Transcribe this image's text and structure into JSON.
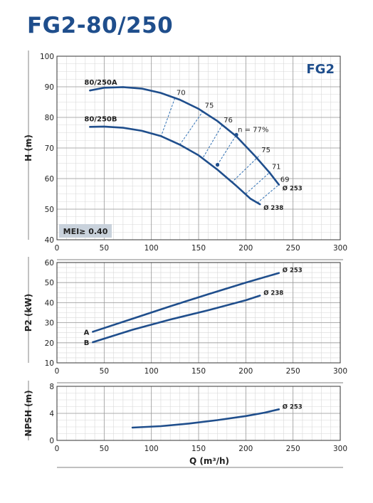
{
  "title": "FG2-80/250",
  "colors": {
    "title": "#1f4e8c",
    "curve": "#1f4e8c",
    "grid_major": "#9a9a9a",
    "grid_minor": "#d8d8d8",
    "badge_bg": "#c9d2dc"
  },
  "chart_data": [
    {
      "id": "head",
      "type": "line",
      "series_label": "FG2",
      "badge": "MEI≥ 0.40",
      "ylabel": "H (m)",
      "xlabel": "",
      "xlim": [
        0,
        300
      ],
      "ylim": [
        40,
        100
      ],
      "xticks": [
        0,
        50,
        100,
        150,
        200,
        250,
        300
      ],
      "yticks": [
        40,
        50,
        60,
        70,
        80,
        90,
        100
      ],
      "grid": true,
      "series": [
        {
          "name": "80/250A",
          "end_label": "Ø 253",
          "x": [
            35,
            50,
            70,
            90,
            110,
            130,
            150,
            170,
            190,
            210,
            225,
            235
          ],
          "y": [
            88.8,
            89.7,
            89.9,
            89.4,
            88.0,
            85.8,
            82.8,
            78.8,
            73.8,
            67.3,
            62.0,
            58.0
          ]
        },
        {
          "name": "80/250B",
          "end_label": "Ø 238",
          "x": [
            35,
            50,
            70,
            90,
            110,
            130,
            150,
            170,
            190,
            205,
            215
          ],
          "y": [
            76.9,
            77.0,
            76.6,
            75.6,
            73.9,
            71.1,
            67.6,
            62.9,
            57.6,
            53.4,
            51.6
          ]
        }
      ],
      "efficiency_lines": [
        {
          "label": "70",
          "x": [
            110,
            125
          ],
          "y": [
            73.6,
            86.4
          ]
        },
        {
          "label": "75",
          "x": [
            130,
            155
          ],
          "y": [
            71.0,
            82.2
          ]
        },
        {
          "label": "76",
          "x": [
            155,
            175
          ],
          "y": [
            67.0,
            77.5
          ]
        },
        {
          "label": "n = 77%",
          "x": [
            170,
            190
          ],
          "y": [
            64.5,
            74.3
          ]
        },
        {
          "label": "75",
          "x": [
            185,
            215
          ],
          "y": [
            58.7,
            67.7
          ]
        },
        {
          "label": "71",
          "x": [
            200,
            226
          ],
          "y": [
            55.0,
            62.2
          ]
        },
        {
          "label": "69",
          "x": [
            212,
            235
          ],
          "y": [
            52.0,
            58.0
          ]
        }
      ],
      "bep_points": [
        {
          "x": 190,
          "y": 74.3
        },
        {
          "x": 170,
          "y": 64.5
        }
      ]
    },
    {
      "id": "power",
      "type": "line",
      "ylabel": "P2 (kW)",
      "xlabel": "",
      "xlim": [
        0,
        300
      ],
      "ylim": [
        10,
        60
      ],
      "xticks": [
        0,
        50,
        100,
        150,
        200,
        250,
        300
      ],
      "yticks": [
        10,
        20,
        30,
        40,
        50,
        60
      ],
      "grid": true,
      "series": [
        {
          "name": "A",
          "end_label": "Ø 253",
          "x": [
            38,
            80,
            120,
            160,
            200,
            235
          ],
          "y": [
            25.5,
            32.0,
            38.2,
            44.2,
            50.0,
            54.8
          ]
        },
        {
          "name": "B",
          "end_label": "Ø 238",
          "x": [
            38,
            80,
            120,
            160,
            200,
            215
          ],
          "y": [
            20.3,
            26.5,
            31.6,
            36.2,
            41.2,
            43.5
          ]
        }
      ]
    },
    {
      "id": "npsh",
      "type": "line",
      "ylabel": "NPSH (m)",
      "xlabel": "Q (m³/h)",
      "xlim": [
        0,
        300
      ],
      "ylim": [
        0,
        8
      ],
      "xticks": [
        0,
        50,
        100,
        150,
        200,
        250,
        300
      ],
      "yticks": [
        0,
        4,
        8
      ],
      "grid": true,
      "series": [
        {
          "name": "",
          "end_label": "Ø 253",
          "x": [
            80,
            110,
            140,
            170,
            200,
            220,
            235
          ],
          "y": [
            1.9,
            2.1,
            2.5,
            3.0,
            3.6,
            4.1,
            4.6
          ]
        }
      ]
    }
  ]
}
